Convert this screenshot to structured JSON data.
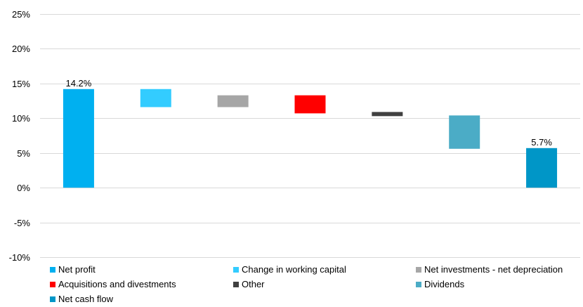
{
  "chart_data": {
    "type": "waterfall",
    "ylim": [
      -10,
      25
    ],
    "yticks": [
      -10,
      -5,
      0,
      5,
      10,
      15,
      20,
      25
    ],
    "tick_suffix": "%",
    "grid": true,
    "legend_position": "bottom",
    "categories": [
      "Net profit",
      "Change in working capital",
      "Net investments - net depreciation",
      "Acquisitions and divestments",
      "Other",
      "Dividends",
      "Net cash flow"
    ],
    "bars": [
      {
        "name": "Net profit",
        "start": 0,
        "end": 14.2,
        "color": "#00b0f0",
        "label": "14.2%"
      },
      {
        "name": "Change in working capital",
        "start": 14.2,
        "end": 11.6,
        "color": "#33ccff",
        "label": ""
      },
      {
        "name": "Net investments - net depreciation",
        "start": 13.3,
        "end": 11.6,
        "color": "#a6a6a6",
        "label": ""
      },
      {
        "name": "Acquisitions and divestments",
        "start": 13.3,
        "end": 10.7,
        "color": "#ff0000",
        "label": ""
      },
      {
        "name": "Other",
        "start": 10.9,
        "end": 10.3,
        "color": "#404040",
        "label": ""
      },
      {
        "name": "Dividends",
        "start": 10.4,
        "end": 5.6,
        "color": "#4bacc6",
        "label": ""
      },
      {
        "name": "Net cash flow",
        "start": 0,
        "end": 5.7,
        "color": "#0096c7",
        "label": "5.7%"
      }
    ]
  }
}
